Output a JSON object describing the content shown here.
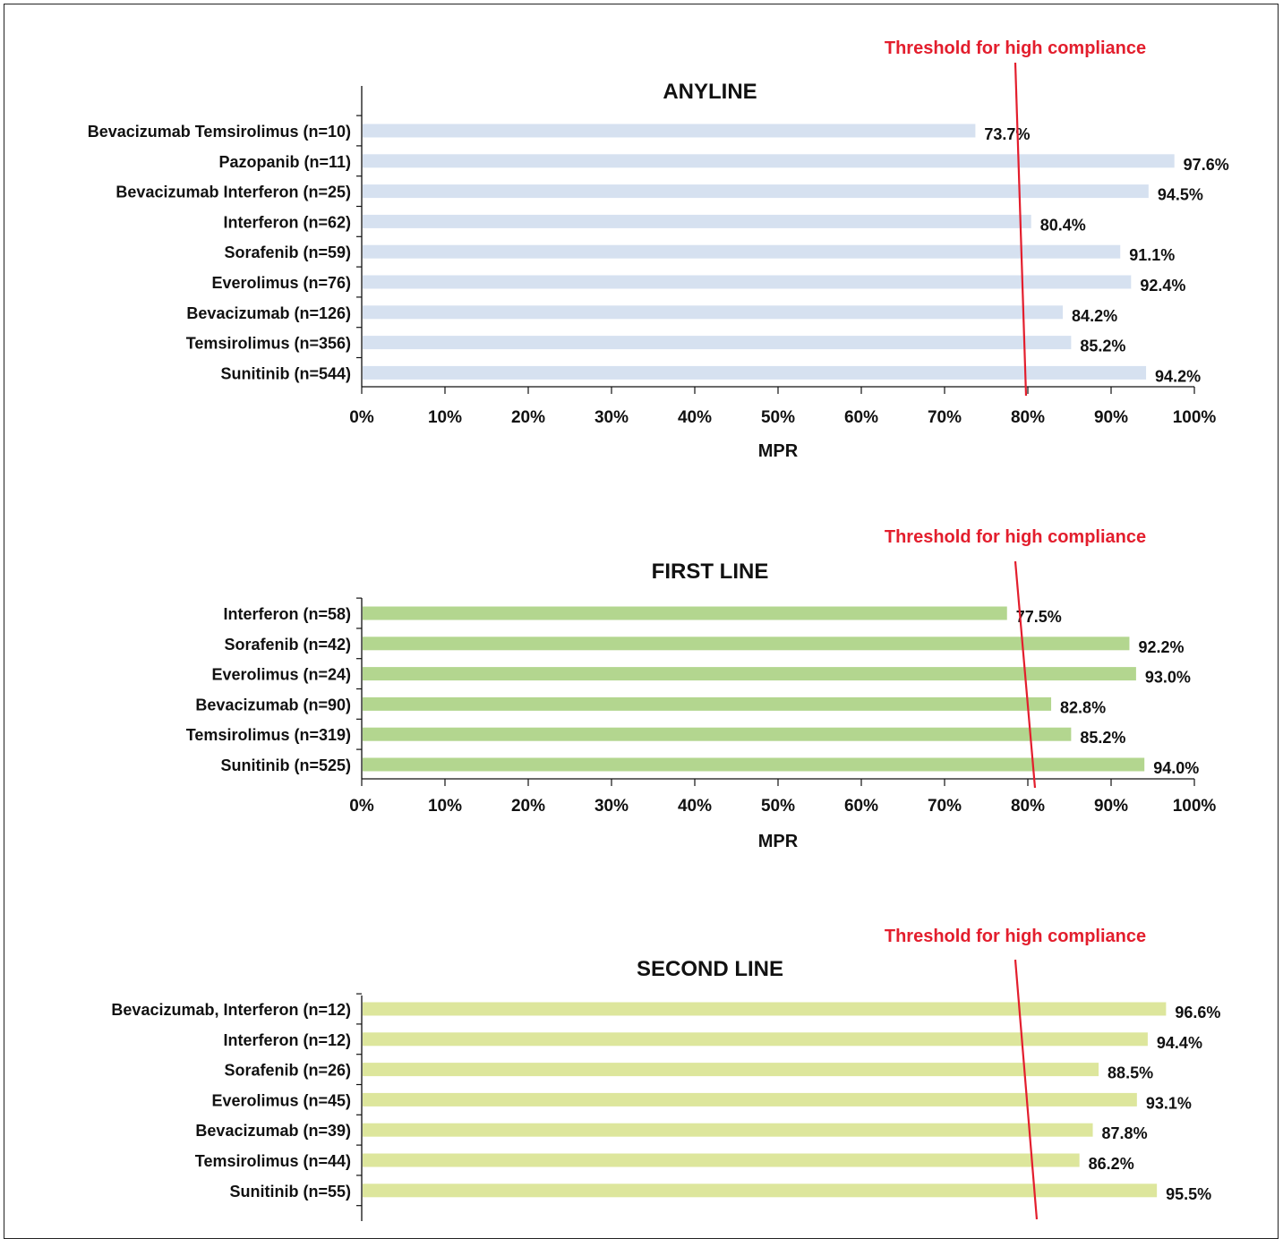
{
  "chart_data": [
    {
      "type": "bar",
      "orientation": "horizontal",
      "title": "ANYLINE",
      "xlabel": "MPR",
      "ylabel": "",
      "xlim": [
        0,
        100
      ],
      "x_ticks": [
        "0%",
        "10%",
        "20%",
        "30%",
        "40%",
        "50%",
        "60%",
        "70%",
        "80%",
        "90%",
        "100%"
      ],
      "bar_color": "#d6e1f0",
      "categories": [
        "Bevacizumab Temsirolimus (n=10)",
        "Pazopanib (n=11)",
        "Bevacizumab Interferon (n=25)",
        "Interferon (n=62)",
        "Sorafenib (n=59)",
        "Everolimus (n=76)",
        "Bevacizumab (n=126)",
        "Temsirolimus (n=356)",
        "Sunitinib (n=544)"
      ],
      "values": [
        73.7,
        97.6,
        94.5,
        80.4,
        91.1,
        92.4,
        84.2,
        85.2,
        94.2
      ],
      "value_labels": [
        "73.7%",
        "97.6%",
        "94.5%",
        "80.4%",
        "91.1%",
        "92.4%",
        "84.2%",
        "85.2%",
        "94.2%"
      ],
      "threshold": {
        "label": "Threshold for high compliance",
        "value": 80,
        "color": "#e31e2d"
      },
      "grid": false
    },
    {
      "type": "bar",
      "orientation": "horizontal",
      "title": "FIRST LINE",
      "xlabel": "MPR",
      "ylabel": "",
      "xlim": [
        0,
        100
      ],
      "x_ticks": [
        "0%",
        "10%",
        "20%",
        "30%",
        "40%",
        "50%",
        "60%",
        "70%",
        "80%",
        "90%",
        "100%"
      ],
      "bar_color": "#b3d68f",
      "categories": [
        "Interferon (n=58)",
        "Sorafenib (n=42)",
        "Everolimus (n=24)",
        "Bevacizumab (n=90)",
        "Temsirolimus (n=319)",
        "Sunitinib (n=525)"
      ],
      "values": [
        77.5,
        92.2,
        93.0,
        82.8,
        85.2,
        94.0
      ],
      "value_labels": [
        "77.5%",
        "92.2%",
        "93.0%",
        "82.8%",
        "85.2%",
        "94.0%"
      ],
      "threshold": {
        "label": "Threshold for high compliance",
        "value": 80,
        "color": "#e31e2d"
      },
      "grid": false
    },
    {
      "type": "bar",
      "orientation": "horizontal",
      "title": "SECOND LINE",
      "xlabel": "",
      "ylabel": "",
      "xlim": [
        0,
        100
      ],
      "bar_color": "#dde69c",
      "categories": [
        "Bevacizumab, Interferon (n=12)",
        "Interferon (n=12)",
        "Sorafenib (n=26)",
        "Everolimus (n=45)",
        "Bevacizumab (n=39)",
        "Temsirolimus (n=44)",
        "Sunitinib (n=55)"
      ],
      "values": [
        96.6,
        94.4,
        88.5,
        93.1,
        87.8,
        86.2,
        95.5
      ],
      "value_labels": [
        "96.6%",
        "94.4%",
        "88.5%",
        "93.1%",
        "87.8%",
        "86.2%",
        "95.5%"
      ],
      "threshold": {
        "label": "Threshold for high compliance",
        "value": 80,
        "color": "#e31e2d"
      },
      "grid": false
    }
  ]
}
